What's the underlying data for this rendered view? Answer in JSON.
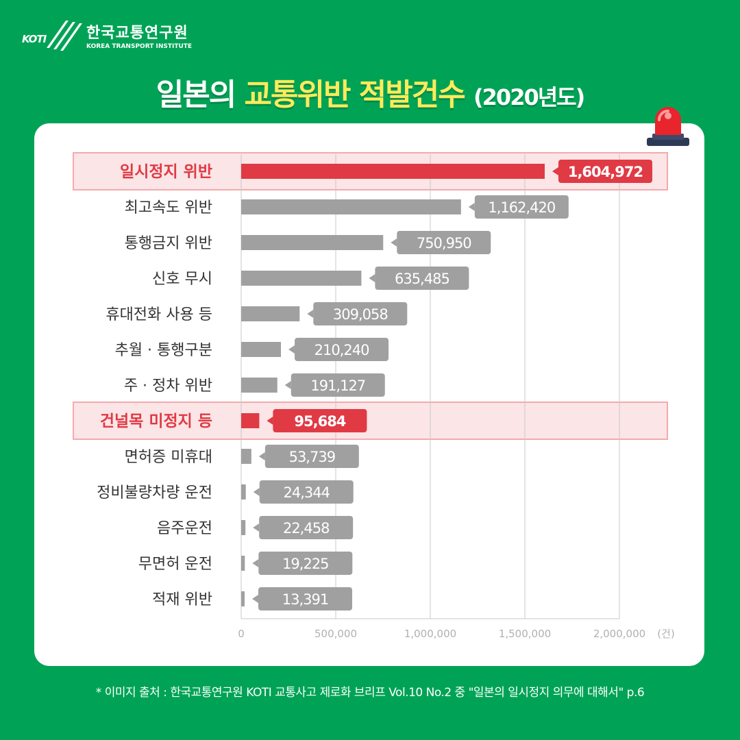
{
  "logo": {
    "korean": "한국교통연구원",
    "english": "KOREA TRANSPORT INSTITUTE",
    "mark": "KOTI"
  },
  "title": {
    "part1": "일본의",
    "highlight": "교통위반 적발건수",
    "year": "(2020년도)"
  },
  "source": "* 이미지 출처 : 한국교통연구원 KOTI 교통사고 제로화 브리프 Vol.10 No.2 중 \"일본의 일시정지 의무에 대해서\" p.6",
  "colors": {
    "background": "#00a356",
    "highlight": "#e03a45",
    "bar": "#a0a0a0",
    "highlight_row": "#fbe5e6",
    "title_accent": "#ffeb5a"
  },
  "chart_data": {
    "type": "bar",
    "orientation": "horizontal",
    "categories": [
      "일시정지 위반",
      "최고속도 위반",
      "통행금지 위반",
      "신호 무시",
      "휴대전화 사용 등",
      "추월 · 통행구분",
      "주 · 정차 위반",
      "건널목 미정지 등",
      "면허증 미휴대",
      "정비불량차량 운전",
      "음주운전",
      "무면허 운전",
      "적재 위반"
    ],
    "values": [
      1604972,
      1162420,
      750950,
      635485,
      309058,
      210240,
      191127,
      95684,
      53739,
      24344,
      22458,
      19225,
      13391
    ],
    "data_labels": [
      "1,604,972",
      "1,162,420",
      "750,950",
      "635,485",
      "309,058",
      "210,240",
      "191,127",
      "95,684",
      "53,739",
      "24,344",
      "22,458",
      "19,225",
      "13,391"
    ],
    "highlighted": [
      "일시정지 위반",
      "건널목 미정지 등"
    ],
    "xlim": [
      0,
      2000000
    ],
    "x_ticks": [
      0,
      500000,
      1000000,
      1500000,
      2000000
    ],
    "x_tick_labels": [
      "0",
      "500,000",
      "1,000,000",
      "1,500,000",
      "2,000,000"
    ],
    "x_unit": "(건)",
    "grid": true
  }
}
